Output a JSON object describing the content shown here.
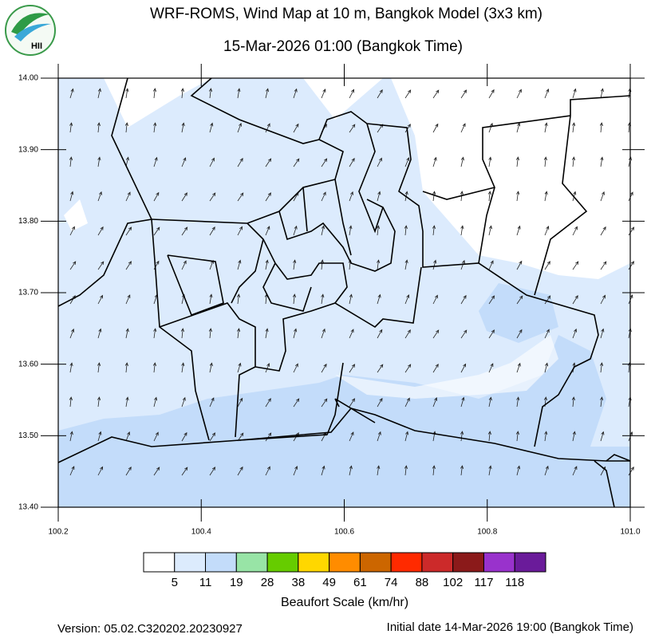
{
  "header": {
    "title": "WRF-ROMS, Wind Map at 10 m, Bangkok Model (3x3 km)",
    "subtitle": "15-Mar-2026 01:00 (Bangkok Time)",
    "logo_text": "HII"
  },
  "chart_data": {
    "type": "map",
    "xlim": [
      100.2,
      101.0
    ],
    "ylim": [
      13.4,
      14.0
    ],
    "xticks": [
      100.2,
      100.4,
      100.6,
      100.8,
      {
        "value": 101.0,
        "label": "101.0"
      }
    ],
    "yticks": [
      {
        "value": 13.4,
        "label": "13.40"
      },
      {
        "value": 13.5,
        "label": "13.50"
      },
      {
        "value": 13.6,
        "label": "13.60"
      },
      {
        "value": 13.7,
        "label": "13.70"
      },
      {
        "value": 13.8,
        "label": "13.80"
      },
      {
        "value": 13.9,
        "label": "13.90"
      },
      {
        "value": 14.0,
        "label": "14.00"
      }
    ]
  },
  "legend": {
    "colors": [
      "#ffffff",
      "#dcebfd",
      "#c3dcfa",
      "#98e4a6",
      "#66cc00",
      "#ffd700",
      "#ff8c00",
      "#cc6600",
      "#ff2a00",
      "#cc2a2a",
      "#8b1a1a",
      "#9932cc",
      "#6a1b9a"
    ],
    "labels": [
      5,
      11,
      19,
      28,
      38,
      49,
      61,
      74,
      88,
      102,
      117,
      118
    ],
    "title": "Beaufort Scale (km/hr)"
  },
  "footer": {
    "version": "Version: 05.02.C320202.20230927",
    "initial_date": "Initial date 14-Mar-2026 19:00 (Bangkok Time)"
  }
}
